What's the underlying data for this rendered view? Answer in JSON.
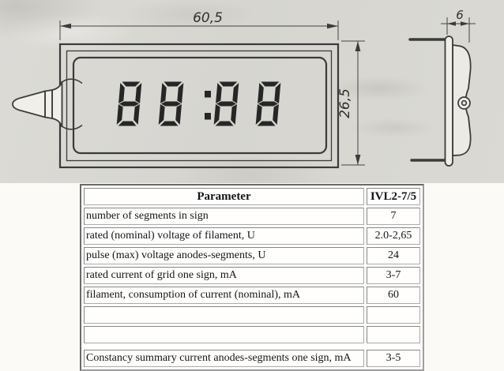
{
  "scan": {
    "paper_color": "#d8d7d2",
    "line_color": "#3b3b3b"
  },
  "drawing": {
    "display_value": "88:88",
    "digit_color": "#262626",
    "dimensions": {
      "width": "60,5",
      "height": "26,5",
      "depth": "6"
    }
  },
  "table": {
    "border_color": "#7d7d7d",
    "header": {
      "param": "Parameter",
      "value": "IVL2-7/5"
    },
    "rows": [
      {
        "param": "number of segments in sign",
        "value": "7"
      },
      {
        "param": "rated (nominal) voltage of filament, U",
        "value": "2.0-2,65"
      },
      {
        "param": "pulse (max) voltage anodes-segments, U",
        "value": "24"
      },
      {
        "param": "rated current of grid one sign, mA",
        "value": "3-7"
      },
      {
        "param": "filament, consumption of current (nominal), mA",
        "value": "60"
      },
      {
        "param": "",
        "value": ""
      },
      {
        "param": "",
        "value": ""
      },
      {
        "param": "Constancy summary current anodes-segments one sign, mA",
        "value": "3-5"
      }
    ]
  }
}
